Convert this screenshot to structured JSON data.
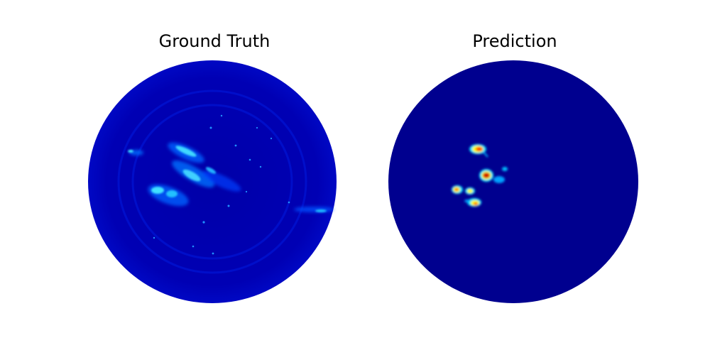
{
  "panels": {
    "left": {
      "title": "Ground Truth"
    },
    "right": {
      "title": "Prediction"
    }
  },
  "colors": {
    "background": "#00008f",
    "disk_ground_truth": "#0000b0",
    "ring": "#0010c8",
    "echo_low": "#0030ff",
    "echo_mid": "#00a0ff",
    "echo_high": "#40e0ff",
    "pred_cyan": "#00ffff",
    "pred_yellow": "#ffff00",
    "pred_orange": "#ff8000",
    "pred_red": "#c00000"
  },
  "colormap": "jet"
}
